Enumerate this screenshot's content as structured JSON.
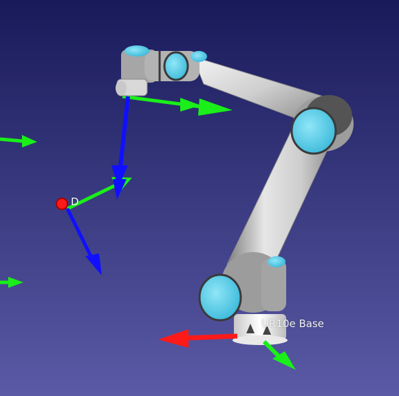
{
  "viewer": {
    "background_top": "#191a5a",
    "background_bottom": "#5a5aa6"
  },
  "robot": {
    "model_label": "UR10e Base",
    "link_color": "#d9d9d9",
    "joint_cap_color": "#5ad2ee",
    "joint_ring_color": "#3a3a3a"
  },
  "frames": {
    "target_label": "D"
  },
  "axes": {
    "x_color": "#ff1a1a",
    "y_color": "#1aef1a",
    "z_color": "#1010ff"
  }
}
